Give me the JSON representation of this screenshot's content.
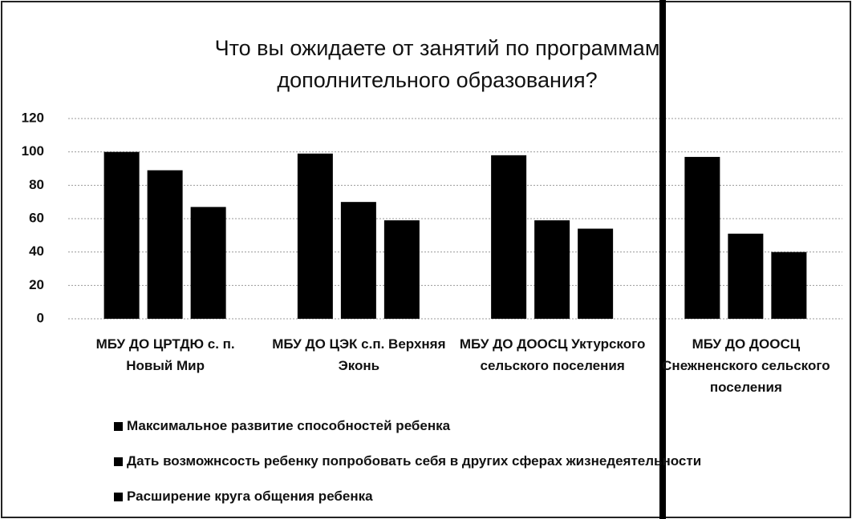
{
  "chart_data": {
    "type": "bar",
    "title": "Что вы ожидаете от занятий по программам дополнительного образования?",
    "categories": [
      "МБУ ДО ЦРТДЮ с. п. Новый Мир",
      "МБУ ДО ЦЭК с.п. Верхняя Эконь",
      "МБУ ДО ДООСЦ Уктурского сельского поселения",
      "МБУ ДО ДООСЦ Снежненского сельского поселения"
    ],
    "series": [
      {
        "name": "Максимальное развитие способностей ребенка",
        "color": "#000000",
        "values": [
          100,
          99,
          98,
          97
        ]
      },
      {
        "name": "Дать возможнсость ребенку попробовать себя в других сферах жизнедеятельности",
        "color": "#000000",
        "values": [
          89,
          70,
          59,
          51
        ]
      },
      {
        "name": "Расширение круга общения ребенка",
        "color": "#000000",
        "values": [
          67,
          59,
          54,
          40
        ]
      }
    ],
    "ylim": [
      0,
      120
    ],
    "yticks": [
      0,
      20,
      40,
      60,
      80,
      100,
      120
    ],
    "grid": true
  }
}
